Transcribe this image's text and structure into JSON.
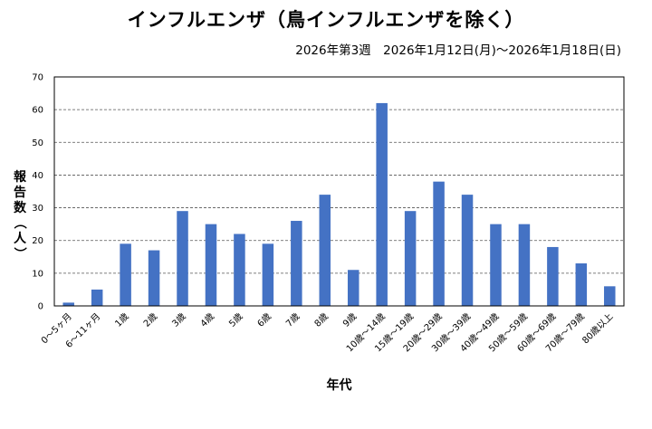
{
  "title": "インフルエンザ（鳥インフルエンザを除く）",
  "subtitle": "2026年第3週　2026年1月12日(月)〜2026年1月18日(日)",
  "chart_data": {
    "type": "bar",
    "xlabel": "年代",
    "ylabel": "報告数（人）",
    "ylim": [
      0,
      70
    ],
    "yticks": [
      0,
      10,
      20,
      30,
      40,
      50,
      60,
      70
    ],
    "grid": true,
    "bar_color": "#4472c4",
    "categories": [
      "0〜5ヶ月",
      "6〜11ヶ月",
      "1歳",
      "2歳",
      "3歳",
      "4歳",
      "5歳",
      "6歳",
      "7歳",
      "8歳",
      "9歳",
      "10歳〜14歳",
      "15歳〜19歳",
      "20歳〜29歳",
      "30歳〜39歳",
      "40歳〜49歳",
      "50歳〜59歳",
      "60歳〜69歳",
      "70歳〜79歳",
      "80歳以上"
    ],
    "values": [
      1,
      5,
      19,
      17,
      29,
      25,
      22,
      19,
      26,
      34,
      11,
      62,
      29,
      38,
      34,
      25,
      25,
      18,
      13,
      6
    ]
  }
}
